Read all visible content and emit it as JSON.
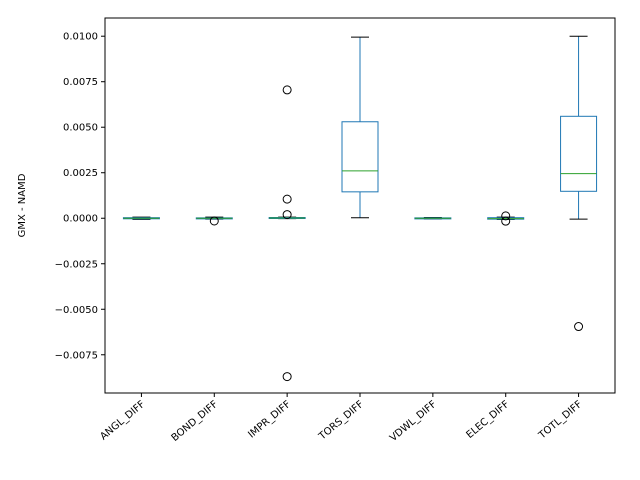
{
  "chart_data": {
    "type": "box",
    "title": "",
    "xlabel": "",
    "ylabel": "GMX - NAMD",
    "ylim": [
      -0.0096,
      0.011
    ],
    "grid": false,
    "legend": "none",
    "yticks": [
      -0.0075,
      -0.005,
      -0.0025,
      0.0,
      0.0025,
      0.005,
      0.0075,
      0.01
    ],
    "ytick_labels": [
      "−0.0075",
      "−0.0050",
      "−0.0025",
      "0.0000",
      "0.0025",
      "0.0050",
      "0.0075",
      "0.0100"
    ],
    "categories": [
      "ANGL_DIFF",
      "BOND_DIFF",
      "IMPR_DIFF",
      "TORS_DIFF",
      "VDWL_DIFF",
      "ELEC_DIFF",
      "TOTL_DIFF"
    ],
    "boxes": [
      {
        "name": "ANGL_DIFF",
        "whisker_low": -6e-05,
        "q1": -3e-05,
        "median": 0.0,
        "q3": 3e-05,
        "whisker_high": 6e-05,
        "outliers": []
      },
      {
        "name": "BOND_DIFF",
        "whisker_low": -5e-05,
        "q1": -2e-05,
        "median": 0.0,
        "q3": 2e-05,
        "whisker_high": 6e-05,
        "outliers": [
          -0.00015
        ]
      },
      {
        "name": "IMPR_DIFF",
        "whisker_low": -2e-05,
        "q1": -1e-05,
        "median": 1e-05,
        "q3": 4e-05,
        "whisker_high": 6e-05,
        "outliers": [
          0.00705,
          0.00105,
          0.0002,
          -0.0087
        ]
      },
      {
        "name": "TORS_DIFF",
        "whisker_low": 3e-05,
        "q1": 0.00145,
        "median": 0.0026,
        "q3": 0.0053,
        "whisker_high": 0.00995,
        "outliers": []
      },
      {
        "name": "VDWL_DIFF",
        "whisker_low": -4e-05,
        "q1": -2e-05,
        "median": 0.0,
        "q3": 2e-05,
        "whisker_high": 4e-05,
        "outliers": []
      },
      {
        "name": "ELEC_DIFF",
        "whisker_low": -7e-05,
        "q1": -5e-05,
        "median": -2e-05,
        "q3": 3e-05,
        "whisker_high": 6e-05,
        "outliers": [
          0.00013,
          -0.00016
        ]
      },
      {
        "name": "TOTL_DIFF",
        "whisker_low": -5e-05,
        "q1": 0.00148,
        "median": 0.00245,
        "q3": 0.0056,
        "whisker_high": 0.01,
        "outliers": [
          -0.00595
        ]
      }
    ],
    "colors": {
      "box": "#1f77b4",
      "median": "#2ca02c",
      "whisker": "#000000",
      "axes": "#000000"
    }
  }
}
